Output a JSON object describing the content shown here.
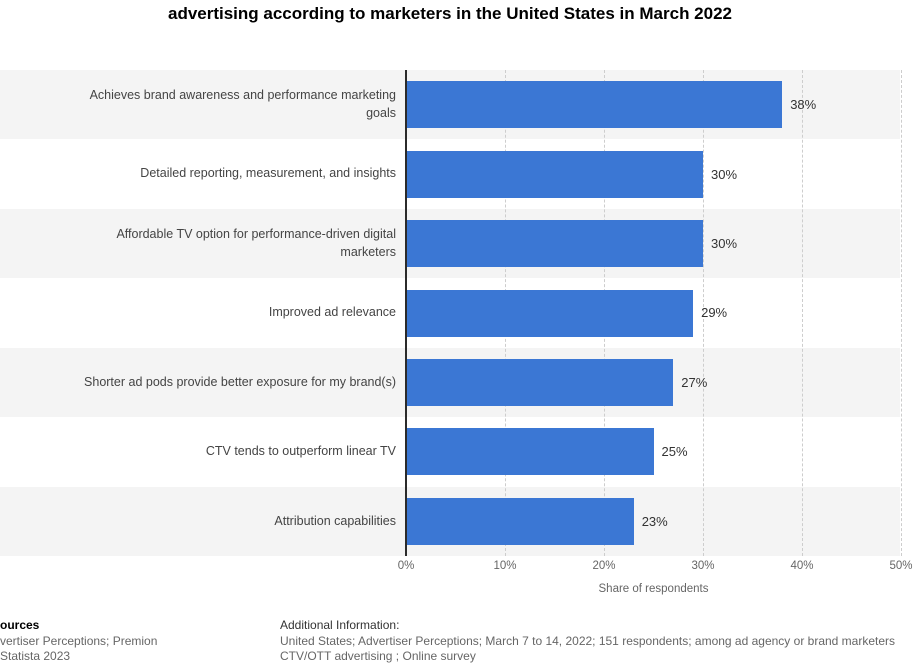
{
  "title": "advertising according to marketers in the United States in March 2022",
  "chart_data": {
    "type": "bar",
    "orientation": "horizontal",
    "title": "advertising according to marketers in the United States in March 2022",
    "categories": [
      "Achieves brand awareness and performance marketing goals",
      "Detailed reporting, measurement, and insights",
      "Affordable TV option for performance-driven digital marketers",
      "Improved ad relevance",
      "Shorter ad pods provide better exposure for my brand(s)",
      "CTV tends to outperform linear TV",
      "Attribution capabilities"
    ],
    "values": [
      38,
      30,
      30,
      29,
      27,
      25,
      23
    ],
    "value_labels": [
      "38%",
      "30%",
      "30%",
      "29%",
      "27%",
      "25%",
      "23%"
    ],
    "xlabel": "Share of respondents",
    "ylabel": "",
    "x_ticks": [
      "0%",
      "10%",
      "20%",
      "30%",
      "40%",
      "50%"
    ],
    "x_tick_values": [
      0,
      10,
      20,
      30,
      40,
      50
    ],
    "xlim": [
      0,
      50
    ],
    "bar_color": "#3b77d4",
    "band_color": "#f4f4f4",
    "grid": "dashed-vertical",
    "legend_position": "none"
  },
  "footer": {
    "sources_heading": "ources",
    "sources_line": "vertiser Perceptions; Premion",
    "statista_line": "Statista 2023",
    "additional_heading": "Additional Information:",
    "additional_line1": "United States; Advertiser Perceptions; March 7 to 14, 2022; 151 respondents; among ad agency or brand marketers",
    "additional_line2": "CTV/OTT advertising ; Online survey"
  }
}
